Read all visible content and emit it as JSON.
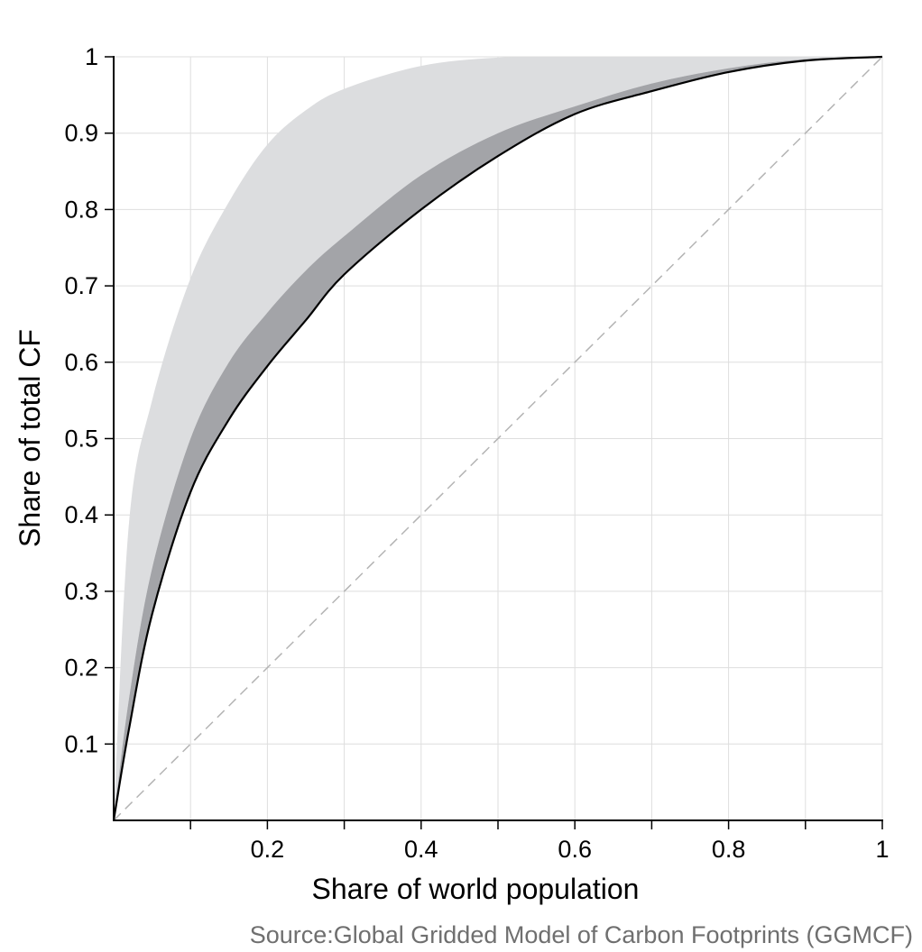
{
  "chart_data": {
    "type": "area",
    "xlabel": "Share of world population",
    "ylabel": "Share of total CF",
    "source": "Source:Global Gridded Model of Carbon Footprints (GGMCF)",
    "xlim": [
      0,
      1
    ],
    "ylim": [
      0,
      1
    ],
    "x_ticks": [
      "0.2",
      "0.4",
      "0.6",
      "0.8",
      "1"
    ],
    "y_ticks": [
      "0.1",
      "0.2",
      "0.3",
      "0.4",
      "0.5",
      "0.6",
      "0.7",
      "0.8",
      "0.9",
      "1"
    ],
    "grid": true,
    "x": [
      0,
      0.02,
      0.05,
      0.1,
      0.15,
      0.2,
      0.25,
      0.3,
      0.4,
      0.5,
      0.6,
      0.7,
      0.8,
      0.9,
      1.0
    ],
    "series": [
      {
        "role": "outer-band-upper",
        "color": "#dcdddf",
        "values": [
          0,
          0.39,
          0.55,
          0.71,
          0.81,
          0.885,
          0.93,
          0.958,
          0.988,
          0.999,
          1.0,
          1.0,
          1.0,
          1.0,
          1.0
        ]
      },
      {
        "role": "inner-band-upper",
        "color": "#a3a4a8",
        "values": [
          0,
          0.16,
          0.33,
          0.5,
          0.6,
          0.665,
          0.72,
          0.765,
          0.845,
          0.9,
          0.935,
          0.965,
          0.985,
          0.997,
          1.0
        ]
      },
      {
        "role": "curve",
        "color": "#000000",
        "values": [
          0,
          0.12,
          0.27,
          0.43,
          0.525,
          0.595,
          0.655,
          0.715,
          0.8,
          0.87,
          0.925,
          0.955,
          0.98,
          0.995,
          1.0
        ]
      }
    ],
    "reference_line": {
      "role": "equality-diagonal",
      "style": "dashed",
      "color": "#b4b4b4",
      "x": [
        0,
        1
      ],
      "y": [
        0,
        1
      ]
    }
  }
}
